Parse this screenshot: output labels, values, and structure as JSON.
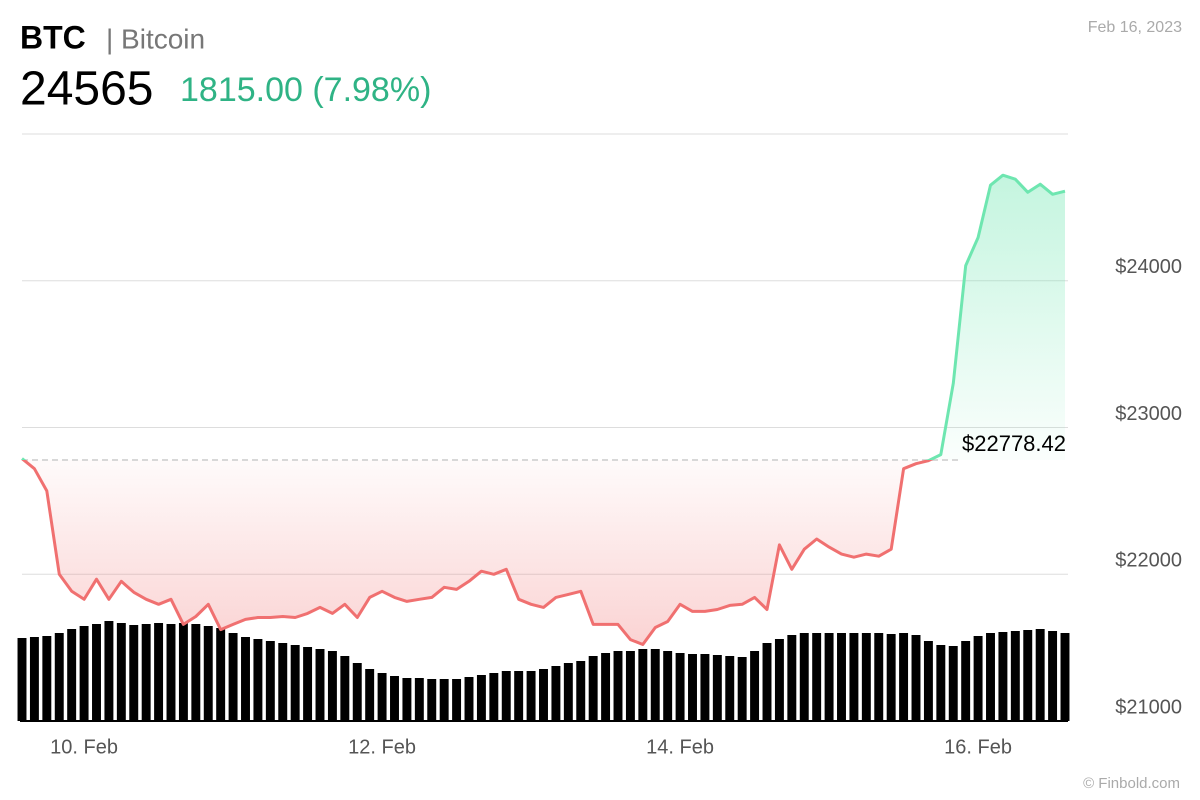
{
  "header": {
    "symbol": "BTC",
    "name": "| Bitcoin",
    "price": "24565",
    "change": "1815.00 (7.98%)",
    "date": "Feb 16, 2023",
    "credit": "© Finbold.com"
  },
  "chart_data": {
    "type": "line",
    "values": [
      22788,
      22719,
      22568,
      22000,
      21884,
      21829,
      21966,
      21829,
      21952,
      21877,
      21829,
      21795,
      21829,
      21658,
      21712,
      21795,
      21623,
      21658,
      21692,
      21705,
      21705,
      21712,
      21705,
      21733,
      21774,
      21733,
      21795,
      21705,
      21842,
      21884,
      21842,
      21815,
      21829,
      21842,
      21911,
      21897,
      21952,
      22021,
      22000,
      22034,
      21829,
      21795,
      21774,
      21842,
      21863,
      21884,
      21658,
      21658,
      21658,
      21555,
      21521,
      21637,
      21678,
      21795,
      21747,
      21747,
      21760,
      21788,
      21795,
      21842,
      21760,
      22200,
      22034,
      22171,
      22240,
      22185,
      22137,
      22116,
      22137,
      22123,
      22171,
      22719,
      22753,
      22774,
      22815,
      23301,
      24103,
      24295,
      24651,
      24719,
      24692,
      24603,
      24658,
      24589,
      24610
    ],
    "volume": [
      83,
      84,
      85,
      88,
      92,
      95,
      97,
      100,
      98,
      96,
      97,
      98,
      97,
      98,
      97,
      95,
      93,
      88,
      84,
      82,
      80,
      78,
      76,
      74,
      72,
      70,
      65,
      58,
      52,
      48,
      45,
      43,
      43,
      42,
      42,
      42,
      44,
      46,
      48,
      50,
      50,
      50,
      52,
      55,
      58,
      60,
      65,
      68,
      70,
      70,
      72,
      72,
      70,
      68,
      67,
      67,
      66,
      65,
      64,
      70,
      78,
      82,
      86,
      88,
      88,
      88,
      88,
      88,
      88,
      88,
      87,
      88,
      86,
      80,
      76,
      75,
      80,
      85,
      88,
      89,
      90,
      91,
      92,
      90,
      88
    ],
    "volume_ylim": [
      0,
      100
    ],
    "xlim": [
      0,
      84
    ],
    "xticks": [
      {
        "value": 5,
        "label": "10. Feb"
      },
      {
        "value": 29,
        "label": "12. Feb"
      },
      {
        "value": 53,
        "label": "14. Feb"
      },
      {
        "value": 77,
        "label": "16. Feb"
      }
    ],
    "ylim": [
      21000,
      25000
    ],
    "yticks": [
      {
        "value": 21000,
        "label": "$21000"
      },
      {
        "value": 22000,
        "label": "$22000"
      },
      {
        "value": 23000,
        "label": "$23000"
      },
      {
        "value": 24000,
        "label": "$24000"
      }
    ],
    "baseline": 22778.42,
    "baseline_label": "$22778.42",
    "up_color": "#6ee6b0",
    "down_color": "#f07070",
    "volume_color": "#000000",
    "grid": true
  }
}
